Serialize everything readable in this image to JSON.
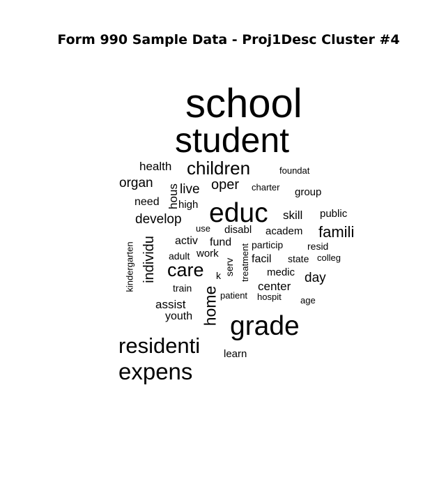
{
  "chart_data": {
    "type": "wordcloud",
    "title": "Form 990 Sample Data - Proj1Desc Cluster #4",
    "words": [
      {
        "text": "school",
        "weight": 100,
        "rotated": false
      },
      {
        "text": "student",
        "weight": 85,
        "rotated": false
      },
      {
        "text": "educ",
        "weight": 70,
        "rotated": false
      },
      {
        "text": "grade",
        "weight": 70,
        "rotated": false
      },
      {
        "text": "residenti",
        "weight": 55,
        "rotated": false
      },
      {
        "text": "expens",
        "weight": 55,
        "rotated": false
      },
      {
        "text": "children",
        "weight": 45,
        "rotated": false
      },
      {
        "text": "care",
        "weight": 45,
        "rotated": false
      },
      {
        "text": "famili",
        "weight": 35,
        "rotated": false
      },
      {
        "text": "home",
        "weight": 35,
        "rotated": true
      },
      {
        "text": "individu",
        "weight": 32,
        "rotated": true
      },
      {
        "text": "oper",
        "weight": 30,
        "rotated": false
      },
      {
        "text": "develop",
        "weight": 28,
        "rotated": false
      },
      {
        "text": "organ",
        "weight": 28,
        "rotated": false
      },
      {
        "text": "live",
        "weight": 28,
        "rotated": false
      },
      {
        "text": "day",
        "weight": 28,
        "rotated": false
      },
      {
        "text": "health",
        "weight": 26,
        "rotated": false
      },
      {
        "text": "center",
        "weight": 26,
        "rotated": false
      },
      {
        "text": "assist",
        "weight": 26,
        "rotated": false
      },
      {
        "text": "skill",
        "weight": 24,
        "rotated": false
      },
      {
        "text": "hous",
        "weight": 24,
        "rotated": true
      },
      {
        "text": "need",
        "weight": 22,
        "rotated": false
      },
      {
        "text": "fund",
        "weight": 22,
        "rotated": false
      },
      {
        "text": "activ",
        "weight": 22,
        "rotated": false
      },
      {
        "text": "facil",
        "weight": 22,
        "rotated": false
      },
      {
        "text": "youth",
        "weight": 22,
        "rotated": false
      },
      {
        "text": "academ",
        "weight": 20,
        "rotated": false
      },
      {
        "text": "disabl",
        "weight": 20,
        "rotated": false
      },
      {
        "text": "high",
        "weight": 20,
        "rotated": false
      },
      {
        "text": "group",
        "weight": 19,
        "rotated": false
      },
      {
        "text": "public",
        "weight": 19,
        "rotated": false
      },
      {
        "text": "work",
        "weight": 19,
        "rotated": false
      },
      {
        "text": "particip",
        "weight": 19,
        "rotated": false
      },
      {
        "text": "resid",
        "weight": 19,
        "rotated": false
      },
      {
        "text": "medic",
        "weight": 19,
        "rotated": false
      },
      {
        "text": "learn",
        "weight": 19,
        "rotated": false
      },
      {
        "text": "serv",
        "weight": 19,
        "rotated": true
      },
      {
        "text": "adult",
        "weight": 18,
        "rotated": false
      },
      {
        "text": "state",
        "weight": 18,
        "rotated": false
      },
      {
        "text": "train",
        "weight": 18,
        "rotated": false
      },
      {
        "text": "k",
        "weight": 18,
        "rotated": false
      },
      {
        "text": "treatment",
        "weight": 18,
        "rotated": true
      },
      {
        "text": "foundat",
        "weight": 16,
        "rotated": false
      },
      {
        "text": "charter",
        "weight": 16,
        "rotated": false
      },
      {
        "text": "use",
        "weight": 16,
        "rotated": false
      },
      {
        "text": "colleg",
        "weight": 16,
        "rotated": false
      },
      {
        "text": "patient",
        "weight": 16,
        "rotated": false
      },
      {
        "text": "hospit",
        "weight": 16,
        "rotated": false
      },
      {
        "text": "age",
        "weight": 16,
        "rotated": false
      },
      {
        "text": "kindergarten",
        "weight": 16,
        "rotated": true
      }
    ]
  }
}
